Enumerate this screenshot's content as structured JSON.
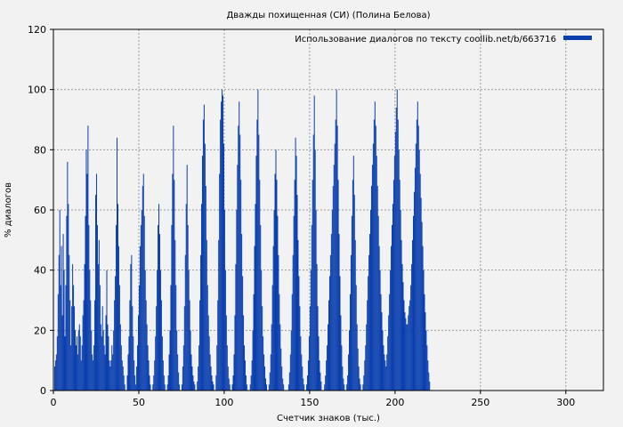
{
  "chart_data": {
    "type": "bar",
    "title": "Дважды похищенная (СИ) (Полина Белова)",
    "xlabel": "Счетчик знаков (тыс.)",
    "ylabel": "% диалогов",
    "xlim": [
      0,
      322
    ],
    "ylim": [
      0,
      120
    ],
    "xticks": [
      0,
      50,
      100,
      150,
      200,
      250,
      300
    ],
    "yticks": [
      0,
      20,
      40,
      60,
      80,
      100,
      120
    ],
    "grid": true,
    "legend_position": "top-right",
    "series": [
      {
        "name": "Использование диалогов по тексту coollib.net/b/663716",
        "color": "#0a3fae",
        "x_start": 0,
        "x_step": 0.5,
        "values": [
          0,
          8,
          10,
          12,
          18,
          32,
          45,
          60,
          35,
          48,
          25,
          52,
          40,
          18,
          35,
          58,
          76,
          62,
          45,
          30,
          15,
          28,
          42,
          35,
          28,
          20,
          15,
          18,
          12,
          20,
          22,
          18,
          10,
          15,
          25,
          30,
          42,
          58,
          80,
          72,
          88,
          55,
          40,
          30,
          20,
          12,
          10,
          15,
          30,
          65,
          72,
          55,
          42,
          50,
          35,
          22,
          18,
          28,
          20,
          15,
          12,
          25,
          40,
          22,
          18,
          10,
          8,
          10,
          15,
          12,
          20,
          30,
          38,
          55,
          84,
          62,
          48,
          35,
          22,
          15,
          10,
          8,
          5,
          2,
          0,
          0,
          5,
          12,
          18,
          30,
          42,
          45,
          28,
          18,
          10,
          5,
          2,
          8,
          15,
          25,
          35,
          48,
          55,
          60,
          68,
          72,
          58,
          40,
          30,
          22,
          15,
          10,
          5,
          2,
          0,
          0,
          2,
          5,
          10,
          18,
          28,
          40,
          55,
          62,
          52,
          40,
          30,
          18,
          10,
          5,
          2,
          0,
          0,
          2,
          5,
          12,
          20,
          35,
          55,
          72,
          88,
          70,
          50,
          35,
          20,
          12,
          6,
          2,
          0,
          0,
          2,
          8,
          15,
          28,
          45,
          62,
          75,
          55,
          40,
          30,
          20,
          12,
          8,
          5,
          3,
          2,
          0,
          0,
          3,
          8,
          15,
          30,
          45,
          62,
          78,
          90,
          95,
          82,
          68,
          50,
          35,
          25,
          18,
          12,
          8,
          5,
          3,
          2,
          0,
          0,
          5,
          15,
          30,
          50,
          72,
          90,
          96,
          100,
          98,
          82,
          60,
          40,
          25,
          15,
          8,
          4,
          2,
          0,
          0,
          2,
          5,
          12,
          25,
          42,
          60,
          75,
          88,
          96,
          85,
          70,
          52,
          38,
          25,
          15,
          10,
          5,
          2,
          0,
          0,
          0,
          2,
          5,
          10,
          20,
          32,
          48,
          62,
          78,
          90,
          100,
          85,
          70,
          55,
          40,
          28,
          18,
          12,
          8,
          4,
          2,
          0,
          0,
          2,
          6,
          12,
          22,
          35,
          48,
          60,
          72,
          80,
          70,
          58,
          45,
          32,
          22,
          14,
          8,
          4,
          2,
          0,
          0,
          0,
          0,
          0,
          2,
          6,
          12,
          20,
          32,
          45,
          58,
          70,
          84,
          78,
          65,
          50,
          38,
          28,
          18,
          12,
          8,
          4,
          2,
          0,
          0,
          2,
          5,
          10,
          18,
          28,
          40,
          55,
          70,
          85,
          98,
          80,
          60,
          42,
          28,
          18,
          10,
          6,
          3,
          0,
          0,
          0,
          2,
          5,
          10,
          15,
          22,
          30,
          38,
          45,
          52,
          60,
          68,
          75,
          82,
          90,
          100,
          88,
          70,
          52,
          38,
          25,
          15,
          8,
          4,
          2,
          0,
          0,
          2,
          5,
          12,
          20,
          32,
          45,
          58,
          70,
          78,
          65,
          50,
          35,
          22,
          14,
          8,
          4,
          2,
          0,
          0,
          2,
          5,
          10,
          15,
          22,
          30,
          38,
          45,
          52,
          60,
          68,
          75,
          82,
          90,
          96,
          88,
          78,
          68,
          58,
          48,
          40,
          32,
          26,
          20,
          15,
          12,
          10,
          8,
          12,
          18,
          25,
          32,
          40,
          48,
          55,
          62,
          70,
          78,
          86,
          94,
          100,
          90,
          80,
          70,
          60,
          50,
          42,
          36,
          30,
          26,
          24,
          22,
          22,
          25,
          28,
          30,
          35,
          42,
          50,
          58,
          66,
          74,
          82,
          90,
          96,
          88,
          80,
          72,
          64,
          56,
          48,
          40,
          32,
          26,
          20,
          15,
          10,
          6,
          3,
          0
        ],
        "note": ""
      }
    ]
  }
}
